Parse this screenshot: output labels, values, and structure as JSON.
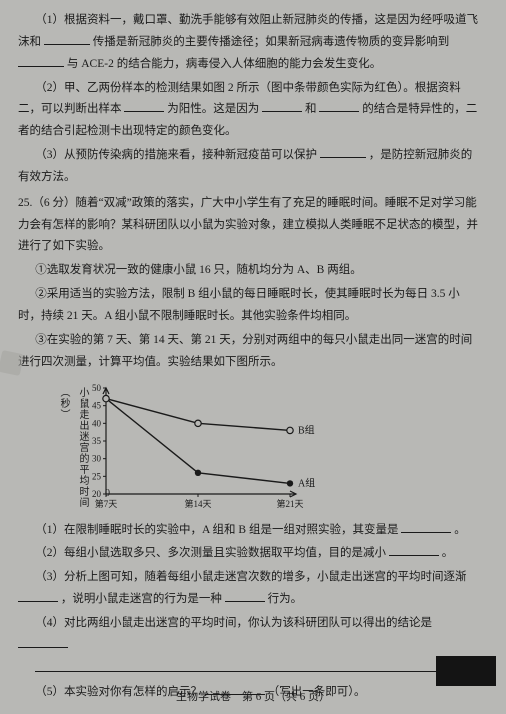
{
  "p1": "（1）根据资料一，戴口罩、勤洗手能够有效阻止新冠肺炎的传播，这是因为经呼吸道飞沫和",
  "p1b": "传播是新冠肺炎的主要传播途径；如果新冠病毒遗传物质的变异影响到",
  "p1c": "与 ACE-2 的结合能力，病毒侵入人体细胞的能力会发生变化。",
  "p2": "（2）甲、乙两份样本的检测结果如图 2 所示（图中条带颜色实际为红色）。根据资料二，可以判断出样本",
  "p2b": "为阳性。这是因为",
  "p2c": "和",
  "p2d": "的结合是特异性的，二者的结合引起检测卡出现特定的颜色变化。",
  "p3": "（3）从预防传染病的措施来看，接种新冠疫苗可以保护",
  "p3b": "，是防控新冠肺炎的有效方法。",
  "q25_head": "25.（6 分）随着“双减”政策的落实，广大中小学生有了充足的睡眠时间。睡眠不足对学习能力会有怎样的影响？某科研团队以小鼠为实验对象，建立模拟人类睡眠不足状态的模型，并进行了如下实验。",
  "s1": "①选取发育状况一致的健康小鼠 16 只，随机均分为 A、B 两组。",
  "s2": "②采用适当的实验方法，限制 B 组小鼠的每日睡眠时长，使其睡眠时长为每日 3.5 小时，持续 21 天。A 组小鼠不限制睡眠时长。其他实验条件均相同。",
  "s3": "③在实验的第 7 天、第 14 天、第 21 天，分别对两组中的每只小鼠走出同一迷宫的时间进行四次测量，计算平均值。实验结果如下图所示。",
  "chart": {
    "ylabel": "小鼠走出迷宫的平均时间（秒）",
    "yticks": [
      "50",
      "45",
      "40",
      "35",
      "30",
      "25",
      "20"
    ],
    "xticks": [
      "第7天",
      "第14天",
      "第21天"
    ],
    "series": [
      {
        "name": "A组",
        "label": "A组",
        "marker": "filled",
        "color": "#1a1a1a",
        "points": [
          [
            0,
            47
          ],
          [
            1,
            26
          ],
          [
            2,
            23
          ]
        ]
      },
      {
        "name": "B组",
        "label": "B组",
        "marker": "open",
        "color": "#1a1a1a",
        "points": [
          [
            0,
            47
          ],
          [
            1,
            40
          ],
          [
            2,
            38
          ]
        ]
      }
    ],
    "ylim": [
      20,
      50
    ],
    "axis_color": "#1a1a1a",
    "bg": "#b8b8b5",
    "line_width": 1.4
  },
  "q1": "（1）在限制睡眠时长的实验中，A 组和 B 组是一组对照实验，其变量是",
  "q1b": "。",
  "q2": "（2）每组小鼠选取多只、多次测量且实验数据取平均值，目的是减小",
  "q2b": "。",
  "q3": "（3）分析上图可知，随着每组小鼠走迷宫次数的增多，小鼠走出迷宫的平均时间逐渐",
  "q3b": "，说明小鼠走迷宫的行为是一种",
  "q3c": "行为。",
  "q4": "（4）对比两组小鼠走出迷宫的平均时间，你认为该科研团队可以得出的结论是",
  "q5": "（5）本实验对你有怎样的启示？",
  "q5b": "（写出一条即可）。",
  "footer": "生物学试卷　第 6 页（共 6 页）"
}
